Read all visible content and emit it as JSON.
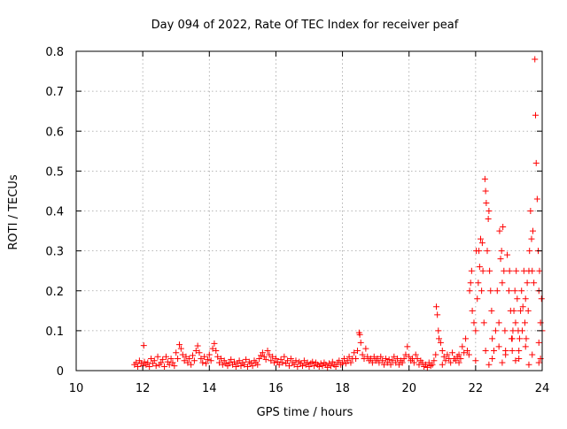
{
  "chart_data": {
    "type": "scatter",
    "title": "Day 094 of 2022, Rate Of TEC Index for receiver peaf",
    "xlabel": "GPS time / hours",
    "ylabel": "ROTI / TECUs",
    "xlim": [
      10,
      24
    ],
    "ylim": [
      0,
      0.8
    ],
    "x_ticks": [
      "10",
      "12",
      "14",
      "16",
      "18",
      "20",
      "22",
      "24"
    ],
    "y_ticks": [
      "0",
      "0.1",
      "0.2",
      "0.3",
      "0.4",
      "0.5",
      "0.6",
      "0.7",
      "0.8"
    ],
    "grid": true,
    "marker": "+",
    "color": "#ff0000",
    "points": [
      [
        11.75,
        0.015
      ],
      [
        11.8,
        0.02
      ],
      [
        11.85,
        0.01
      ],
      [
        11.9,
        0.025
      ],
      [
        11.95,
        0.018
      ],
      [
        12.0,
        0.012
      ],
      [
        12.03,
        0.063
      ],
      [
        12.05,
        0.022
      ],
      [
        12.1,
        0.015
      ],
      [
        12.15,
        0.02
      ],
      [
        12.2,
        0.01
      ],
      [
        12.25,
        0.03
      ],
      [
        12.3,
        0.018
      ],
      [
        12.35,
        0.025
      ],
      [
        12.4,
        0.012
      ],
      [
        12.45,
        0.035
      ],
      [
        12.5,
        0.015
      ],
      [
        12.55,
        0.02
      ],
      [
        12.6,
        0.028
      ],
      [
        12.65,
        0.01
      ],
      [
        12.7,
        0.035
      ],
      [
        12.75,
        0.022
      ],
      [
        12.8,
        0.015
      ],
      [
        12.85,
        0.03
      ],
      [
        12.9,
        0.02
      ],
      [
        12.95,
        0.012
      ],
      [
        13.0,
        0.045
      ],
      [
        13.05,
        0.03
      ],
      [
        13.1,
        0.065
      ],
      [
        13.15,
        0.055
      ],
      [
        13.2,
        0.04
      ],
      [
        13.25,
        0.025
      ],
      [
        13.3,
        0.035
      ],
      [
        13.35,
        0.02
      ],
      [
        13.4,
        0.03
      ],
      [
        13.45,
        0.015
      ],
      [
        13.5,
        0.038
      ],
      [
        13.55,
        0.025
      ],
      [
        13.6,
        0.05
      ],
      [
        13.65,
        0.062
      ],
      [
        13.7,
        0.045
      ],
      [
        13.75,
        0.03
      ],
      [
        13.8,
        0.02
      ],
      [
        13.85,
        0.035
      ],
      [
        13.9,
        0.018
      ],
      [
        13.95,
        0.028
      ],
      [
        14.0,
        0.04
      ],
      [
        14.05,
        0.025
      ],
      [
        14.1,
        0.055
      ],
      [
        14.15,
        0.068
      ],
      [
        14.2,
        0.05
      ],
      [
        14.25,
        0.035
      ],
      [
        14.3,
        0.02
      ],
      [
        14.35,
        0.03
      ],
      [
        14.4,
        0.015
      ],
      [
        14.45,
        0.025
      ],
      [
        14.5,
        0.018
      ],
      [
        14.55,
        0.012
      ],
      [
        14.6,
        0.02
      ],
      [
        14.65,
        0.028
      ],
      [
        14.7,
        0.015
      ],
      [
        14.75,
        0.022
      ],
      [
        14.8,
        0.01
      ],
      [
        14.85,
        0.018
      ],
      [
        14.9,
        0.025
      ],
      [
        14.95,
        0.012
      ],
      [
        15.0,
        0.02
      ],
      [
        15.05,
        0.015
      ],
      [
        15.1,
        0.028
      ],
      [
        15.15,
        0.01
      ],
      [
        15.2,
        0.022
      ],
      [
        15.25,
        0.018
      ],
      [
        15.3,
        0.012
      ],
      [
        15.35,
        0.025
      ],
      [
        15.4,
        0.02
      ],
      [
        15.45,
        0.015
      ],
      [
        15.5,
        0.03
      ],
      [
        15.55,
        0.038
      ],
      [
        15.6,
        0.045
      ],
      [
        15.65,
        0.035
      ],
      [
        15.7,
        0.028
      ],
      [
        15.75,
        0.05
      ],
      [
        15.8,
        0.04
      ],
      [
        15.85,
        0.025
      ],
      [
        15.9,
        0.035
      ],
      [
        15.95,
        0.02
      ],
      [
        16.0,
        0.03
      ],
      [
        16.05,
        0.022
      ],
      [
        16.1,
        0.015
      ],
      [
        16.15,
        0.028
      ],
      [
        16.2,
        0.02
      ],
      [
        16.25,
        0.035
      ],
      [
        16.3,
        0.018
      ],
      [
        16.35,
        0.025
      ],
      [
        16.4,
        0.012
      ],
      [
        16.45,
        0.03
      ],
      [
        16.5,
        0.02
      ],
      [
        16.55,
        0.015
      ],
      [
        16.6,
        0.025
      ],
      [
        16.65,
        0.01
      ],
      [
        16.7,
        0.022
      ],
      [
        16.75,
        0.018
      ],
      [
        16.8,
        0.012
      ],
      [
        16.85,
        0.025
      ],
      [
        16.9,
        0.015
      ],
      [
        16.95,
        0.02
      ],
      [
        17.0,
        0.01
      ],
      [
        17.05,
        0.018
      ],
      [
        17.1,
        0.022
      ],
      [
        17.15,
        0.012
      ],
      [
        17.2,
        0.02
      ],
      [
        17.25,
        0.015
      ],
      [
        17.3,
        0.01
      ],
      [
        17.35,
        0.018
      ],
      [
        17.4,
        0.012
      ],
      [
        17.45,
        0.02
      ],
      [
        17.5,
        0.015
      ],
      [
        17.55,
        0.008
      ],
      [
        17.6,
        0.018
      ],
      [
        17.65,
        0.012
      ],
      [
        17.7,
        0.022
      ],
      [
        17.75,
        0.015
      ],
      [
        17.8,
        0.01
      ],
      [
        17.85,
        0.02
      ],
      [
        17.9,
        0.025
      ],
      [
        17.95,
        0.015
      ],
      [
        18.0,
        0.02
      ],
      [
        18.05,
        0.03
      ],
      [
        18.1,
        0.018
      ],
      [
        18.15,
        0.025
      ],
      [
        18.2,
        0.035
      ],
      [
        18.25,
        0.02
      ],
      [
        18.3,
        0.03
      ],
      [
        18.35,
        0.045
      ],
      [
        18.4,
        0.03
      ],
      [
        18.45,
        0.05
      ],
      [
        18.5,
        0.095
      ],
      [
        18.52,
        0.09
      ],
      [
        18.55,
        0.07
      ],
      [
        18.6,
        0.04
      ],
      [
        18.65,
        0.03
      ],
      [
        18.7,
        0.055
      ],
      [
        18.75,
        0.035
      ],
      [
        18.8,
        0.025
      ],
      [
        18.85,
        0.03
      ],
      [
        18.9,
        0.02
      ],
      [
        18.95,
        0.035
      ],
      [
        19.0,
        0.025
      ],
      [
        19.05,
        0.03
      ],
      [
        19.1,
        0.02
      ],
      [
        19.15,
        0.035
      ],
      [
        19.2,
        0.025
      ],
      [
        19.25,
        0.015
      ],
      [
        19.3,
        0.03
      ],
      [
        19.35,
        0.02
      ],
      [
        19.4,
        0.028
      ],
      [
        19.45,
        0.015
      ],
      [
        19.5,
        0.025
      ],
      [
        19.55,
        0.035
      ],
      [
        19.6,
        0.02
      ],
      [
        19.65,
        0.03
      ],
      [
        19.7,
        0.015
      ],
      [
        19.75,
        0.025
      ],
      [
        19.8,
        0.02
      ],
      [
        19.85,
        0.03
      ],
      [
        19.9,
        0.04
      ],
      [
        19.95,
        0.06
      ],
      [
        20.0,
        0.035
      ],
      [
        20.05,
        0.025
      ],
      [
        20.1,
        0.03
      ],
      [
        20.15,
        0.02
      ],
      [
        20.2,
        0.04
      ],
      [
        20.25,
        0.03
      ],
      [
        20.3,
        0.015
      ],
      [
        20.35,
        0.025
      ],
      [
        20.4,
        0.02
      ],
      [
        20.45,
        0.01
      ],
      [
        20.5,
        0.015
      ],
      [
        20.55,
        0.008
      ],
      [
        20.6,
        0.02
      ],
      [
        20.65,
        0.012
      ],
      [
        20.7,
        0.015
      ],
      [
        20.75,
        0.025
      ],
      [
        20.8,
        0.04
      ],
      [
        20.82,
        0.16
      ],
      [
        20.85,
        0.14
      ],
      [
        20.88,
        0.1
      ],
      [
        20.9,
        0.08
      ],
      [
        20.95,
        0.07
      ],
      [
        21.0,
        0.05
      ],
      [
        21.05,
        0.035
      ],
      [
        21.1,
        0.025
      ],
      [
        21.15,
        0.04
      ],
      [
        21.2,
        0.03
      ],
      [
        21.25,
        0.02
      ],
      [
        21.3,
        0.045
      ],
      [
        21.35,
        0.03
      ],
      [
        21.4,
        0.025
      ],
      [
        21.45,
        0.035
      ],
      [
        21.5,
        0.04
      ],
      [
        21.55,
        0.03
      ],
      [
        21.6,
        0.06
      ],
      [
        21.65,
        0.045
      ],
      [
        21.7,
        0.08
      ],
      [
        21.75,
        0.05
      ],
      [
        21.8,
        0.04
      ],
      [
        21.82,
        0.2
      ],
      [
        21.85,
        0.22
      ],
      [
        21.88,
        0.25
      ],
      [
        21.9,
        0.15
      ],
      [
        21.95,
        0.12
      ],
      [
        22.0,
        0.1
      ],
      [
        22.02,
        0.3
      ],
      [
        22.05,
        0.18
      ],
      [
        22.08,
        0.22
      ],
      [
        22.1,
        0.3
      ],
      [
        22.12,
        0.26
      ],
      [
        22.15,
        0.33
      ],
      [
        22.18,
        0.2
      ],
      [
        22.2,
        0.32
      ],
      [
        22.22,
        0.25
      ],
      [
        22.25,
        0.12
      ],
      [
        22.28,
        0.48
      ],
      [
        22.3,
        0.45
      ],
      [
        22.32,
        0.42
      ],
      [
        22.35,
        0.3
      ],
      [
        22.38,
        0.38
      ],
      [
        22.4,
        0.4
      ],
      [
        22.42,
        0.25
      ],
      [
        22.45,
        0.2
      ],
      [
        22.48,
        0.15
      ],
      [
        22.5,
        0.08
      ],
      [
        22.55,
        0.05
      ],
      [
        22.6,
        0.1
      ],
      [
        22.65,
        0.2
      ],
      [
        22.7,
        0.12
      ],
      [
        22.72,
        0.35
      ],
      [
        22.75,
        0.28
      ],
      [
        22.78,
        0.3
      ],
      [
        22.8,
        0.22
      ],
      [
        22.82,
        0.36
      ],
      [
        22.85,
        0.25
      ],
      [
        22.88,
        0.1
      ],
      [
        22.9,
        0.05
      ],
      [
        22.95,
        0.29
      ],
      [
        23.0,
        0.2
      ],
      [
        23.02,
        0.25
      ],
      [
        23.05,
        0.15
      ],
      [
        23.08,
        0.08
      ],
      [
        23.1,
        0.05
      ],
      [
        23.12,
        0.1
      ],
      [
        23.15,
        0.15
      ],
      [
        23.18,
        0.2
      ],
      [
        23.2,
        0.12
      ],
      [
        23.22,
        0.25
      ],
      [
        23.25,
        0.18
      ],
      [
        23.28,
        0.1
      ],
      [
        23.3,
        0.05
      ],
      [
        23.32,
        0.08
      ],
      [
        23.35,
        0.15
      ],
      [
        23.38,
        0.2
      ],
      [
        23.4,
        0.1
      ],
      [
        23.42,
        0.16
      ],
      [
        23.45,
        0.25
      ],
      [
        23.48,
        0.12
      ],
      [
        23.5,
        0.18
      ],
      [
        23.52,
        0.08
      ],
      [
        23.55,
        0.22
      ],
      [
        23.58,
        0.15
      ],
      [
        23.6,
        0.25
      ],
      [
        23.62,
        0.3
      ],
      [
        23.65,
        0.4
      ],
      [
        23.68,
        0.33
      ],
      [
        23.7,
        0.25
      ],
      [
        23.72,
        0.35
      ],
      [
        23.75,
        0.22
      ],
      [
        23.78,
        0.78
      ],
      [
        23.8,
        0.64
      ],
      [
        23.82,
        0.52
      ],
      [
        23.85,
        0.43
      ],
      [
        23.88,
        0.3
      ],
      [
        23.9,
        0.2
      ],
      [
        23.92,
        0.25
      ],
      [
        23.95,
        0.12
      ],
      [
        23.98,
        0.18
      ],
      [
        24.0,
        0.1
      ],
      [
        22.3,
        0.05
      ],
      [
        22.5,
        0.03
      ],
      [
        22.7,
        0.06
      ],
      [
        22.9,
        0.04
      ],
      [
        23.1,
        0.08
      ],
      [
        23.3,
        0.03
      ],
      [
        23.5,
        0.06
      ],
      [
        23.7,
        0.04
      ],
      [
        23.9,
        0.07
      ],
      [
        23.95,
        0.03
      ],
      [
        21.0,
        0.015
      ],
      [
        21.5,
        0.02
      ],
      [
        22.0,
        0.025
      ],
      [
        22.4,
        0.015
      ],
      [
        22.8,
        0.02
      ],
      [
        23.2,
        0.025
      ],
      [
        23.6,
        0.015
      ],
      [
        23.9,
        0.02
      ]
    ]
  }
}
